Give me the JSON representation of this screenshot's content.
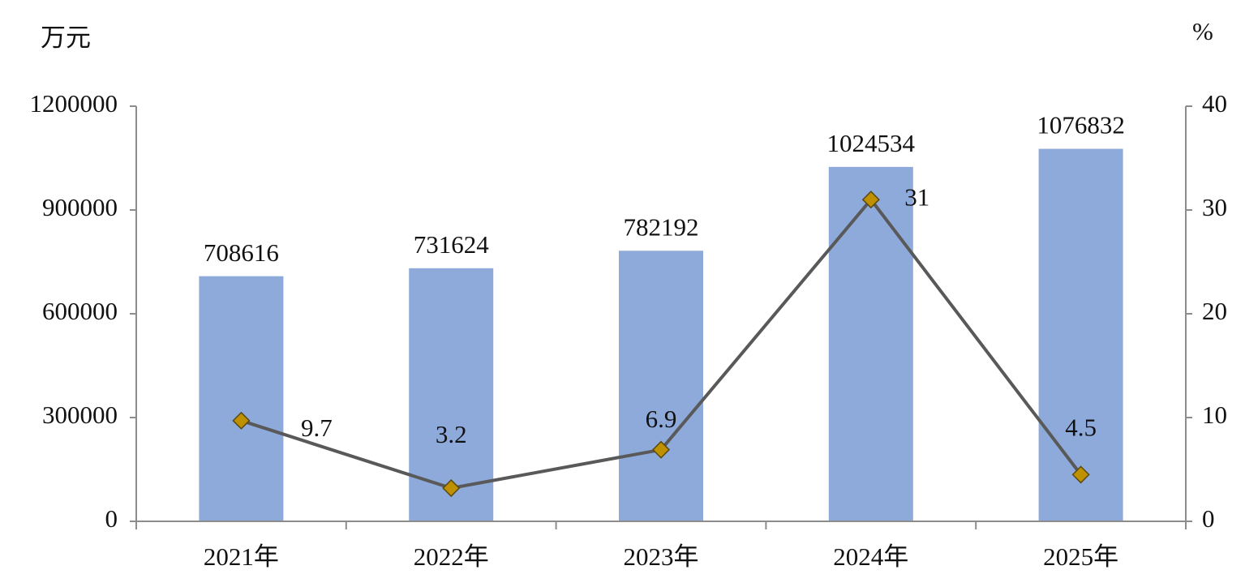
{
  "chart_data": {
    "type": "bar",
    "y_unit": "万元",
    "y2_unit": "%",
    "categories": [
      "2021年",
      "2022年",
      "2023年",
      "2024年",
      "2025年"
    ],
    "series": [
      {
        "type": "bar",
        "color": "#8eaadb",
        "values": [
          708616,
          731624,
          782192,
          1024534,
          1076832
        ]
      },
      {
        "type": "line",
        "axis": "y2",
        "color": "#595959",
        "marker_color": "#bf9000",
        "values": [
          9.7,
          3.2,
          6.9,
          31,
          4.5
        ]
      }
    ],
    "ylim": [
      0,
      1200000
    ],
    "yticks": [
      0,
      300000,
      600000,
      900000,
      1200000
    ],
    "y2lim": [
      0,
      40
    ],
    "y2ticks": [
      0,
      10,
      20,
      30,
      40
    ],
    "grid": false
  }
}
